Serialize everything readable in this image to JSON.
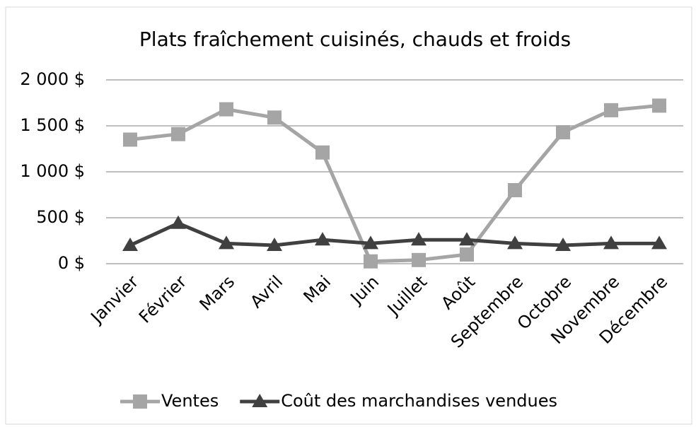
{
  "chart_data": {
    "type": "line",
    "title": "Plats fraîchement cuisinés, chauds et froids",
    "categories": [
      "Janvier",
      "Février",
      "Mars",
      "Avril",
      "Mai",
      "Juin",
      "Juillet",
      "Août",
      "Septembre",
      "Octobre",
      "Novembre",
      "Décembre"
    ],
    "series": [
      {
        "name": "Ventes",
        "color": "#a5a5a5",
        "marker": "square",
        "values": [
          1350,
          1410,
          1680,
          1590,
          1210,
          25,
          40,
          100,
          800,
          1430,
          1670,
          1720
        ]
      },
      {
        "name": "Coût des marchandises vendues",
        "color": "#404040",
        "marker": "triangle",
        "values": [
          200,
          440,
          220,
          200,
          260,
          220,
          260,
          260,
          220,
          200,
          220,
          220
        ]
      }
    ],
    "ylim": [
      0,
      2000
    ],
    "yticks": [
      {
        "value": 0,
        "label": "0 $"
      },
      {
        "value": 500,
        "label": "500 $"
      },
      {
        "value": 1000,
        "label": "1 000 $"
      },
      {
        "value": 1500,
        "label": "1 500 $"
      },
      {
        "value": 2000,
        "label": "2 000 $"
      }
    ],
    "grid": true,
    "legend": "bottom"
  }
}
